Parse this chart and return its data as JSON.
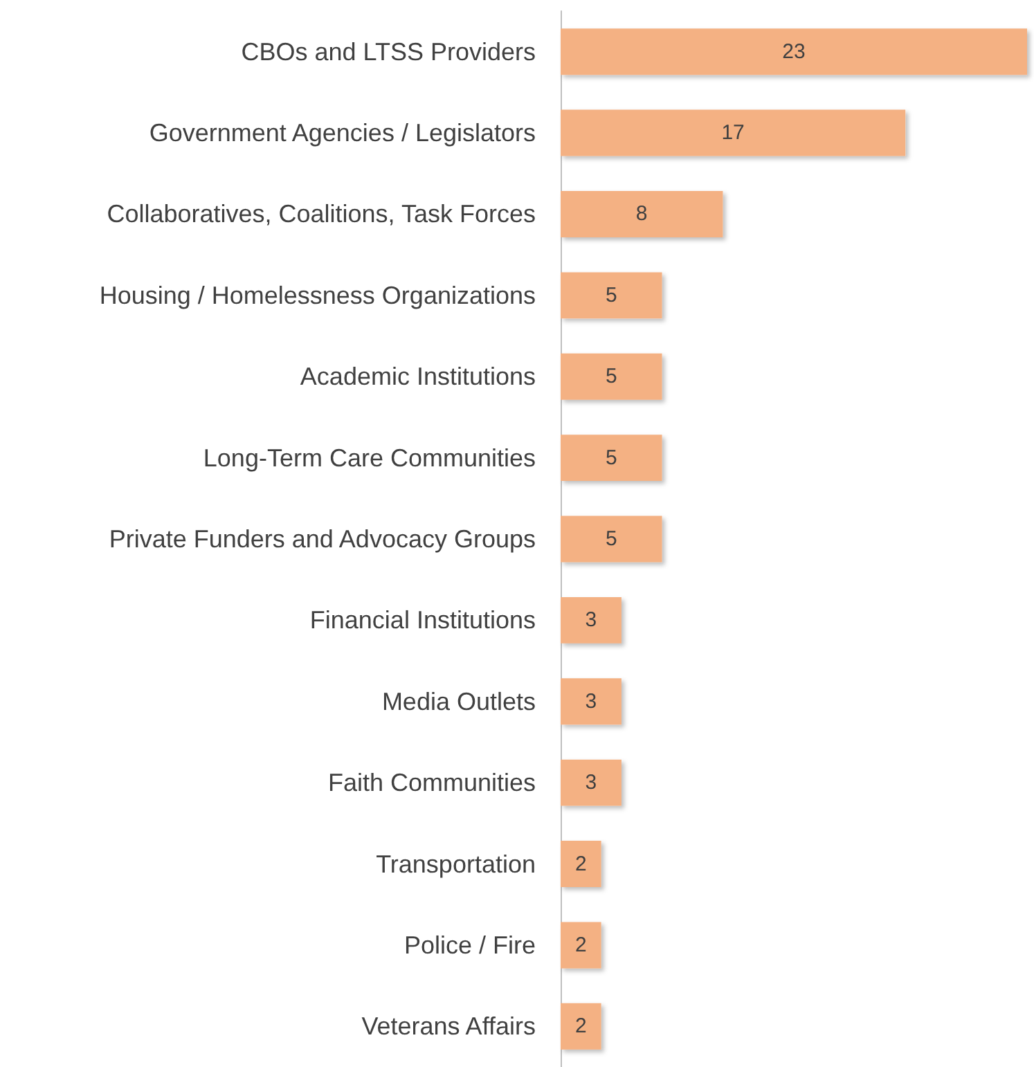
{
  "chart_data": {
    "type": "bar",
    "orientation": "horizontal",
    "categories": [
      "CBOs and LTSS Providers",
      "Government Agencies / Legislators",
      "Collaboratives, Coalitions, Task Forces",
      "Housing / Homelessness Organizations",
      "Academic Institutions",
      "Long-Term Care Communities",
      "Private Funders and Advocacy Groups",
      "Financial Institutions",
      "Media Outlets",
      "Faith Communities",
      "Transportation",
      "Police / Fire",
      "Veterans Affairs"
    ],
    "values": [
      23,
      17,
      8,
      5,
      5,
      5,
      5,
      3,
      3,
      3,
      2,
      2,
      2
    ],
    "color": "#f4b183",
    "data_labels": true
  }
}
